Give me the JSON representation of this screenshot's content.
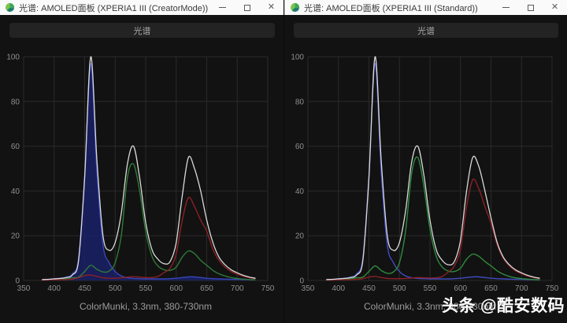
{
  "windows": [
    {
      "title": "光谱: AMOLED面板 (XPERIA1 III (CreatorMode))",
      "button_label": "光谱",
      "caption": "ColorMunki, 3.3nm, 380-730nm"
    },
    {
      "title": "光谱: AMOLED面板 (XPERIA1 III (Standard))",
      "button_label": "光谱",
      "caption": "ColorMunki, 3.3nm, 380-730nm"
    }
  ],
  "watermark": {
    "prefix": "头条",
    "suffix": "@酷安数码"
  },
  "theme": {
    "titlebar_bg": "#fafafa",
    "title_text": "#3a3a3a",
    "content_bg": "#121212",
    "grid": "#2a2a2a",
    "tick": "#8f8f8f",
    "button_bg": "#232323",
    "button_text": "#a8a8a8",
    "caption": "#9c9c9c",
    "watermark": "#ffffff"
  },
  "chart_data": [
    {
      "type": "line",
      "title": "光谱 (CreatorMode)",
      "xlabel": "",
      "ylabel": "",
      "xlim": [
        350,
        750
      ],
      "ylim": [
        0,
        100
      ],
      "x_ticks": [
        350,
        400,
        450,
        500,
        550,
        600,
        650,
        700,
        750
      ],
      "y_ticks": [
        0,
        20,
        40,
        60,
        80,
        100
      ],
      "grid": true,
      "x": [
        380,
        390,
        400,
        410,
        420,
        430,
        440,
        450,
        460,
        470,
        480,
        490,
        500,
        510,
        520,
        530,
        540,
        550,
        560,
        570,
        580,
        590,
        600,
        610,
        620,
        630,
        640,
        650,
        660,
        670,
        680,
        690,
        700,
        710,
        720,
        730
      ],
      "series": [
        {
          "name": "blue",
          "color": "#3a46b8",
          "fill": true,
          "fill_color": "#1a2166",
          "values": [
            0.4,
            0.5,
            0.8,
            1,
            1.5,
            3,
            10,
            47,
            97,
            49,
            16,
            8,
            4,
            2,
            1.2,
            0.9,
            0.8,
            0.7,
            0.7,
            0.7,
            0.7,
            0.8,
            1,
            1.3,
            1.6,
            1.6,
            1.3,
            1,
            0.8,
            0.7,
            0.6,
            0.5,
            0.5,
            0.4,
            0.4,
            0.3
          ]
        },
        {
          "name": "green",
          "color": "#2f7a38",
          "fill": false,
          "values": [
            0.2,
            0.3,
            0.4,
            0.5,
            0.8,
            1.2,
            1.5,
            4,
            6.8,
            5,
            3.8,
            4.2,
            8,
            20,
            46,
            52,
            40,
            22,
            11,
            6.5,
            4.8,
            4.5,
            6,
            10.5,
            13.2,
            12,
            9,
            6.8,
            4.5,
            3,
            2,
            1.3,
            0.9,
            0.6,
            0.4,
            0.3
          ]
        },
        {
          "name": "red",
          "color": "#8c2025",
          "fill": false,
          "values": [
            0.2,
            0.2,
            0.3,
            0.3,
            0.4,
            0.6,
            1.2,
            2.2,
            2.4,
            1.8,
            1.2,
            1,
            1,
            1.2,
            1.5,
            1.7,
            1.5,
            1.3,
            1.3,
            1.8,
            3.5,
            5.5,
            12,
            27,
            37,
            33,
            27,
            22,
            14,
            9,
            6,
            4,
            2.8,
            1.9,
            1.2,
            0.8
          ]
        },
        {
          "name": "white-total",
          "color": "#d9d9d9",
          "fill": false,
          "values": [
            0.4,
            0.5,
            0.7,
            0.9,
            1.3,
            2.5,
            9,
            46,
            100,
            54,
            20,
            13.5,
            17,
            30,
            52,
            60,
            46,
            26,
            14,
            9.5,
            7.5,
            8.5,
            17,
            38,
            55,
            50,
            40,
            27,
            17,
            10.5,
            7,
            4.8,
            3.4,
            2.3,
            1.5,
            1
          ]
        }
      ]
    },
    {
      "type": "line",
      "title": "光谱 (Standard)",
      "xlabel": "",
      "ylabel": "",
      "xlim": [
        350,
        750
      ],
      "ylim": [
        0,
        100
      ],
      "x_ticks": [
        350,
        400,
        450,
        500,
        550,
        600,
        650,
        700,
        750
      ],
      "y_ticks": [
        0,
        20,
        40,
        60,
        80,
        100
      ],
      "grid": true,
      "x": [
        380,
        390,
        400,
        410,
        420,
        430,
        440,
        450,
        460,
        470,
        480,
        490,
        500,
        510,
        520,
        530,
        540,
        550,
        560,
        570,
        580,
        590,
        600,
        610,
        620,
        630,
        640,
        650,
        660,
        670,
        680,
        690,
        700,
        710,
        720,
        730
      ],
      "series": [
        {
          "name": "blue",
          "color": "#3f4cc4",
          "fill": false,
          "values": [
            0.4,
            0.5,
            0.8,
            1,
            1.5,
            3,
            10,
            47,
            97,
            49,
            16,
            8,
            4,
            2,
            1.2,
            0.9,
            0.8,
            0.7,
            0.7,
            0.7,
            0.7,
            0.8,
            1,
            1.3,
            1.6,
            1.6,
            1.3,
            1,
            0.8,
            0.7,
            0.6,
            0.5,
            0.5,
            0.4,
            0.4,
            0.3
          ]
        },
        {
          "name": "green",
          "color": "#2f8a3c",
          "fill": false,
          "values": [
            0.2,
            0.3,
            0.4,
            0.5,
            0.8,
            1.2,
            1.5,
            4,
            6.5,
            4.5,
            3.2,
            3.8,
            8,
            22,
            48,
            55,
            42,
            23,
            11,
            6,
            4.2,
            4,
            5.5,
            9.5,
            11.8,
            10.8,
            8.5,
            6.5,
            4.3,
            2.8,
            1.8,
            1.2,
            0.8,
            0.6,
            0.4,
            0.3
          ]
        },
        {
          "name": "red",
          "color": "#8c2025",
          "fill": false,
          "values": [
            0.2,
            0.2,
            0.3,
            0.3,
            0.4,
            0.5,
            0.8,
            1.5,
            1.8,
            1.3,
            0.9,
            0.8,
            0.8,
            0.9,
            1.1,
            1.3,
            1.2,
            1.1,
            1.2,
            1.8,
            3.8,
            6.5,
            14,
            33,
            45,
            41,
            33,
            25.5,
            16,
            10,
            6.5,
            4.3,
            3,
            2,
            1.3,
            0.8
          ]
        },
        {
          "name": "white-total",
          "color": "#d9d9d9",
          "fill": false,
          "values": [
            0.4,
            0.5,
            0.7,
            0.9,
            1.3,
            2.5,
            9,
            46,
            100,
            54,
            20,
            13.5,
            17,
            31,
            53,
            60,
            47,
            27,
            14,
            9,
            7,
            8.5,
            18,
            40,
            55,
            51,
            40,
            28,
            17,
            10.5,
            7,
            4.8,
            3.4,
            2.3,
            1.5,
            1
          ]
        }
      ]
    }
  ]
}
